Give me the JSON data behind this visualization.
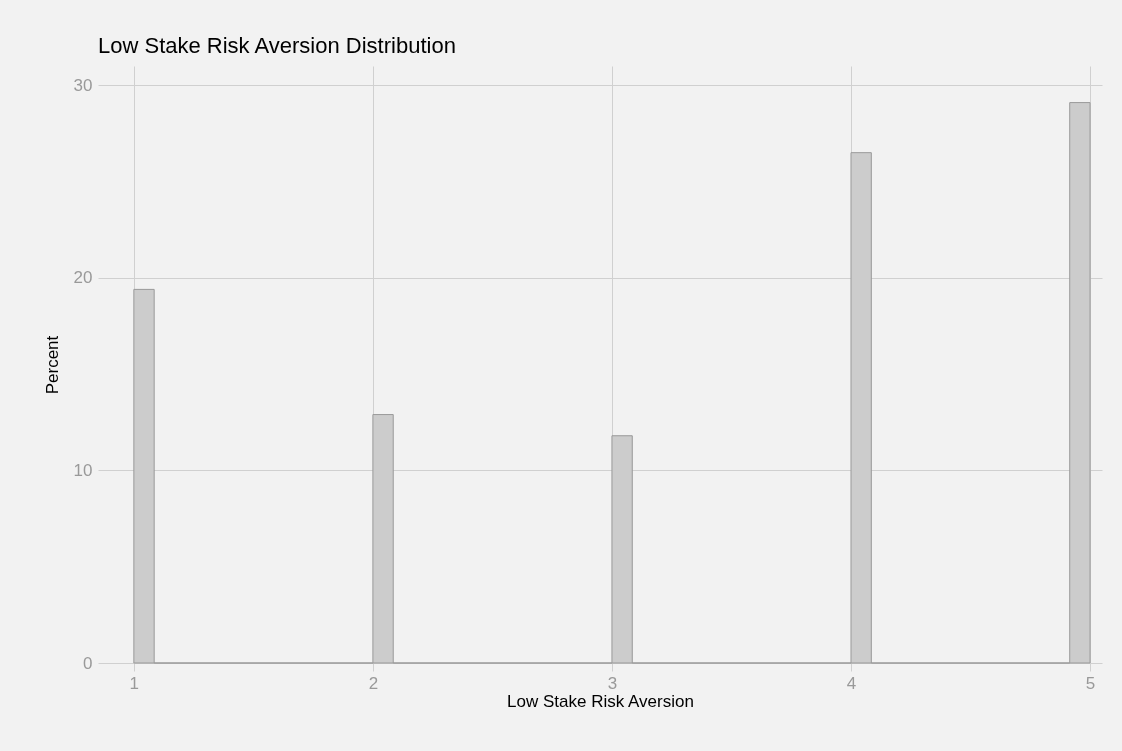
{
  "chart_data": {
    "type": "histogram",
    "title": "Low Stake Risk Aversion Distribution",
    "xlabel": "Low Stake Risk Aversion",
    "ylabel": "Percent",
    "bins": [
      1,
      1.085,
      2,
      2.085,
      3,
      3.085,
      4,
      4.085,
      4.915,
      5
    ],
    "values": [
      19.4,
      0,
      12.9,
      0,
      11.8,
      0,
      26.5,
      0,
      29.1
    ],
    "color": "#cccccc",
    "xlim": [
      0.85,
      5.05
    ],
    "xticks": [
      1,
      2,
      3,
      4,
      5
    ],
    "ylim": [
      0,
      31
    ],
    "yticks": [
      0,
      10,
      20,
      30
    ],
    "grid": true
  }
}
